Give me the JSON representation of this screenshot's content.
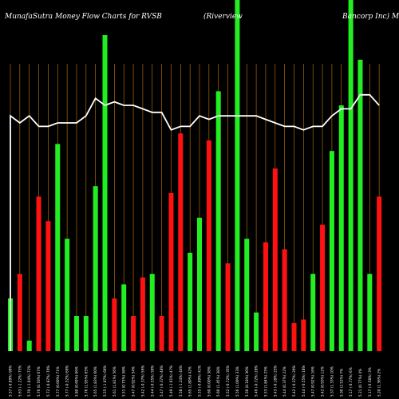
{
  "header": {
    "title": "MunafaSutra  Money Flow  Charts for RVSB",
    "company": "(Riverview",
    "company_tail": "Bancorp Inc) Munaf"
  },
  "colors": {
    "background": "#000000",
    "up": "#22ee22",
    "down": "#ff1111",
    "line": "#ffffff",
    "grid": "#c8790a"
  },
  "chart_data": {
    "type": "bar",
    "ylim": [
      0,
      100
    ],
    "grid": true,
    "categories": [
      "5.57 (-0.89%) 90%",
      "5.63 (-1.22%) 75%",
      "5.70 (-1.04%) 72%",
      "5.76 (0.70%) 67%",
      "5.72 (-0.87%) 70%",
      "5.77 (0.00%) 71%",
      "5.77 (-0.52%) 69%",
      "5.80 (0.69%) 66%",
      "5.76 (1.95%) 65%",
      "5.65 (1.83%) 60%",
      "5.55 (-1.07%) 60%",
      "5.61 (1.81%) 56%",
      "5.51 (0.73%) 58%",
      "5.47 (0.92%) 54%",
      "5.42 (-0.37%) 56%",
      "5.44 (-0.55%) 50%",
      "5.47 (-0.37%) 48%",
      "5.49 (-1.61%) 47%",
      "5.58 (-1.24%) 44%",
      "5.65 (1.80%) 42%",
      "5.55 (-0.89%) 41%",
      "5.60 (0.00%) 38%",
      "5.60 (1.45%) 38%",
      "5.52 (-0.72%) 35%",
      "5.56 (1.09%) 33%",
      "5.50 (0.18%) 30%",
      "5.49 (-0.72%) 28%",
      "5.53 (1.84%) 25%",
      "5.43 (-0.18%) 25%",
      "5.44 (0.37%) 22%",
      "5.42 (-0.37%) 20%",
      "5.44 (-0.55%) 18%",
      "5.47 (0.92%) 16%",
      "5.42 (0.93%) 12%",
      "5.37 (1.33%) 10%",
      "5.30 (2.52%) 7%",
      "5.17 (-0.77%) 6%",
      "5.21 (0.77%) 4%",
      "5.17 (-0.58%) 3%",
      "5.20 (1.36%) 2%"
    ],
    "series": [
      {
        "values": [
          15,
          22,
          3,
          44,
          37,
          59,
          32,
          10,
          10,
          47,
          90,
          15,
          19,
          10,
          21,
          22,
          10,
          45,
          62,
          28,
          38,
          60,
          74,
          25,
          100,
          32,
          11,
          31,
          52,
          29,
          8,
          9,
          22,
          36,
          57,
          70,
          100,
          83,
          22,
          44
        ],
        "directions": [
          "up",
          "down",
          "up",
          "down",
          "down",
          "up",
          "up",
          "up",
          "up",
          "up",
          "up",
          "down",
          "up",
          "down",
          "down",
          "up",
          "down",
          "down",
          "down",
          "up",
          "up",
          "down",
          "up",
          "down",
          "up",
          "up",
          "up",
          "down",
          "down",
          "down",
          "down",
          "down",
          "up",
          "down",
          "up",
          "up",
          "up",
          "up",
          "up",
          "down"
        ]
      }
    ],
    "flow_line": [
      67,
      65,
      67,
      64,
      64,
      65,
      65,
      65,
      67,
      72,
      70,
      71,
      70,
      70,
      69,
      68,
      68,
      63,
      64,
      64,
      67,
      66,
      67,
      67,
      67,
      67,
      67,
      66,
      65,
      64,
      64,
      63,
      64,
      64,
      67,
      69,
      69,
      73,
      73,
      70
    ]
  }
}
